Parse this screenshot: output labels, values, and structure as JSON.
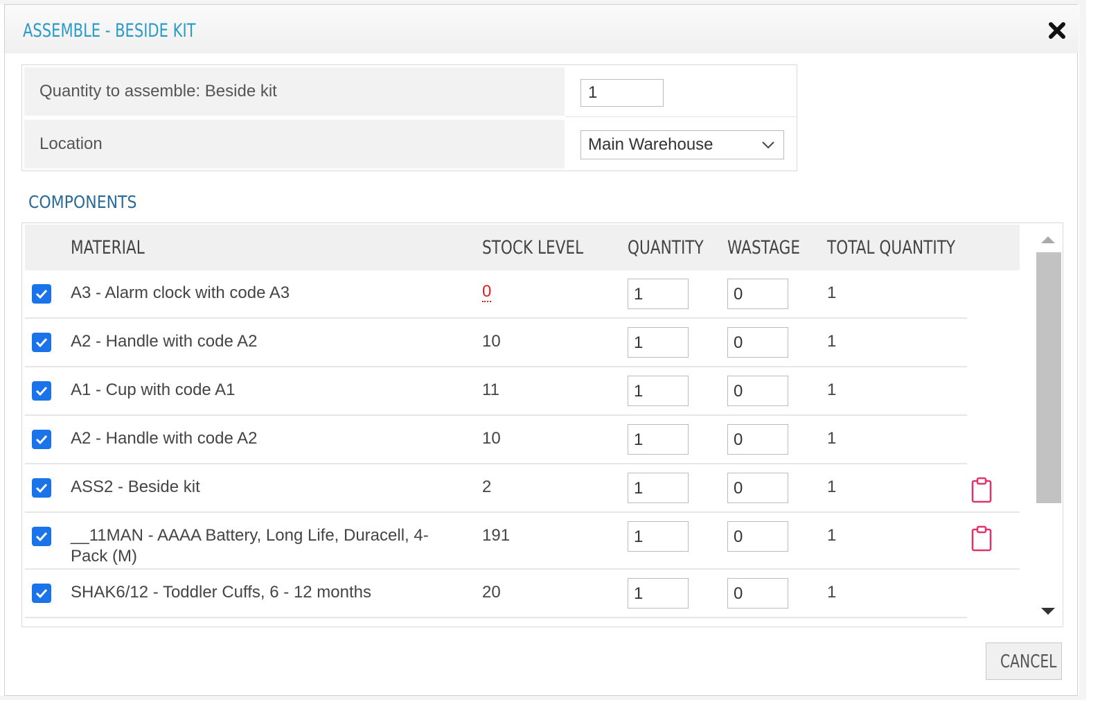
{
  "dialog": {
    "title": "ASSEMBLE - BESIDE KIT"
  },
  "form": {
    "quantity_label": "Quantity to assemble: Beside kit",
    "quantity_value": "1",
    "location_label": "Location",
    "location_value": "Main Warehouse"
  },
  "components": {
    "section_title": "COMPONENTS",
    "headers": {
      "material": "MATERIAL",
      "stock_level": "STOCK LEVEL",
      "quantity": "QUANTITY",
      "wastage": "WASTAGE",
      "total_quantity": "TOTAL QUANTITY"
    },
    "rows": [
      {
        "checked": true,
        "material": "A3 - Alarm clock with code A3",
        "stock": "0",
        "quantity": "1",
        "wastage": "0",
        "total": "1"
      },
      {
        "checked": true,
        "material": "A2 - Handle with code A2",
        "stock": "10",
        "quantity": "1",
        "wastage": "0",
        "total": "1"
      },
      {
        "checked": true,
        "material": "A1 - Cup with code A1",
        "stock": "11",
        "quantity": "1",
        "wastage": "0",
        "total": "1"
      },
      {
        "checked": true,
        "material": "A2 - Handle with code A2",
        "stock": "10",
        "quantity": "1",
        "wastage": "0",
        "total": "1"
      },
      {
        "checked": true,
        "material": "ASS2 - Beside kit",
        "stock": "2",
        "quantity": "1",
        "wastage": "0",
        "total": "1",
        "icon": "clipboard-icon"
      },
      {
        "checked": true,
        "material": "__11MAN - AAAA Battery, Long Life, Duracell, 4-Pack (M)",
        "stock": "191",
        "quantity": "1",
        "wastage": "0",
        "total": "1",
        "icon": "clipboard-icon"
      },
      {
        "checked": true,
        "material": "SHAK6/12 - Toddler Cuffs, 6 - 12 months",
        "stock": "20",
        "quantity": "1",
        "wastage": "0",
        "total": "1"
      }
    ]
  },
  "footer": {
    "cancel_label": "CANCEL"
  },
  "colors": {
    "title": "#2a9bc6",
    "section_title": "#2b6a97",
    "checkbox": "#1a73e8",
    "stock_zero": "#e02020",
    "clipboard_icon": "#e0336a"
  }
}
